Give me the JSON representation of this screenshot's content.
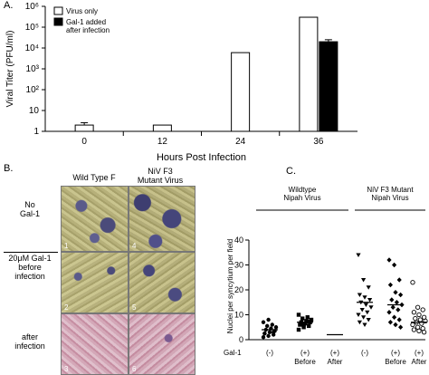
{
  "panel_letters": {
    "a": "A.",
    "b": "B.",
    "c": "C."
  },
  "chart_data": [
    {
      "type": "bar",
      "panel": "A",
      "ylabel": "Viral Titer (PFU/ml)",
      "xlabel": "Hours Post Infection",
      "yscale": "log",
      "ylim": [
        1,
        1000000
      ],
      "yticks": [
        "1",
        "10",
        "10²",
        "10³",
        "10⁴",
        "10⁵",
        "10⁶"
      ],
      "categories": [
        "0",
        "12",
        "24",
        "36"
      ],
      "series": [
        {
          "name": "Virus only",
          "color": "#ffffff",
          "values": [
            2,
            2,
            6000,
            300000
          ],
          "errors": [
            0.6,
            null,
            null,
            null
          ]
        },
        {
          "name": "Gal-1 added after infection",
          "color": "#000000",
          "values": [
            null,
            null,
            null,
            20000
          ],
          "errors": [
            null,
            null,
            null,
            5000
          ]
        }
      ],
      "legend": {
        "placement": "top-left",
        "entries": [
          "Virus only",
          "Gal-1 added\nafter infection"
        ]
      }
    },
    {
      "type": "scatter",
      "panel": "C",
      "ylabel": "Nuclei per syncytium per field",
      "ylim": [
        0,
        40
      ],
      "yticks": [
        0,
        10,
        20,
        30,
        40
      ],
      "group_labels": [
        "Wildtype\nNipah Virus",
        "NiV F3 Mutant\nNipah Virus"
      ],
      "row_label": "Gal-1",
      "categories": [
        "(-)",
        "(+)\nBefore",
        "(+)\nAfter",
        "(-)",
        "(+)\nBefore",
        "(+)\nAfter"
      ],
      "series": [
        {
          "name": "WT (-)",
          "marker": "circle-filled",
          "points": [
            1,
            1.5,
            2,
            2.5,
            3,
            3.5,
            4,
            4.5,
            5,
            5.5,
            6,
            7,
            8,
            3,
            2.5
          ],
          "mean": 4
        },
        {
          "name": "WT (+) Before",
          "marker": "square-filled",
          "points": [
            4,
            5,
            5.5,
            6,
            6.5,
            7,
            7,
            7.5,
            8,
            8.5,
            9,
            10,
            6,
            7.2
          ],
          "mean": 7
        },
        {
          "name": "WT (+) After",
          "marker": "none",
          "points": [],
          "mean": 2
        },
        {
          "name": "F3 (-)",
          "marker": "triangle-down",
          "points": [
            34,
            24,
            21,
            18,
            17,
            16,
            15,
            14,
            13,
            12,
            11,
            10,
            9,
            8,
            7,
            6
          ],
          "mean": 15
        },
        {
          "name": "F3 (+) Before",
          "marker": "diamond",
          "points": [
            32,
            30,
            24,
            22,
            19,
            18,
            16,
            15,
            14,
            13,
            12,
            11,
            9,
            8,
            7,
            6,
            5
          ],
          "mean": 14
        },
        {
          "name": "F3 (+) After",
          "marker": "circle-open",
          "points": [
            23,
            13,
            12,
            11,
            10,
            9,
            8.5,
            8,
            7.5,
            7,
            6.5,
            6,
            5,
            4.5,
            4,
            3.5,
            3
          ],
          "mean": 7
        }
      ]
    }
  ],
  "panel_b": {
    "col_headers": [
      "Wild Type F",
      "NiV F3\nMutant Virus"
    ],
    "row_labels": [
      "No\nGal-1",
      "20μM Gal-1\nbefore\ninfection",
      "after\ninfection"
    ],
    "image_numbers": [
      "1",
      "2",
      "3",
      "4",
      "5",
      "6"
    ]
  }
}
